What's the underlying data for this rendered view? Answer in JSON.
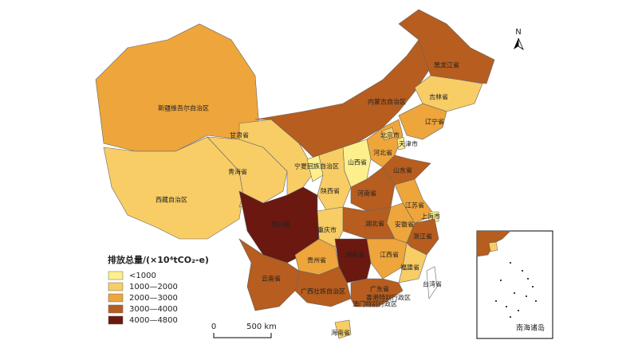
{
  "map": {
    "legend": {
      "title": "排放总量/(×10⁴tCO₂-e)",
      "classes": [
        "<1000",
        "1000—2000",
        "2000—3000",
        "3000—4000",
        "4000—4800"
      ],
      "colors": [
        "#fdf08c",
        "#f8cd66",
        "#eea53b",
        "#b65d1f",
        "#6a1810"
      ]
    },
    "provinces": [
      {
        "name": "新疆维吾尔自治区",
        "class": 2
      },
      {
        "name": "西藏自治区",
        "class": 1
      },
      {
        "name": "青海省",
        "class": 1
      },
      {
        "name": "甘肃省",
        "class": 1
      },
      {
        "name": "内蒙古自治区",
        "class": 3
      },
      {
        "name": "黑龙江省",
        "class": 3
      },
      {
        "name": "吉林省",
        "class": 1
      },
      {
        "name": "辽宁省",
        "class": 2
      },
      {
        "name": "河北省",
        "class": 2
      },
      {
        "name": "北京市",
        "class": 1
      },
      {
        "name": "天津市",
        "class": 0
      },
      {
        "name": "山西省",
        "class": 0
      },
      {
        "name": "宁夏回族自治区",
        "class": 0
      },
      {
        "name": "陕西省",
        "class": 1
      },
      {
        "name": "山东省",
        "class": 3
      },
      {
        "name": "河南省",
        "class": 3
      },
      {
        "name": "江苏省",
        "class": 2
      },
      {
        "name": "安徽省",
        "class": 2
      },
      {
        "name": "上海市",
        "class": 0
      },
      {
        "name": "浙江省",
        "class": 3
      },
      {
        "name": "湖北省",
        "class": 3
      },
      {
        "name": "重庆市",
        "class": 1
      },
      {
        "name": "四川省",
        "class": 4
      },
      {
        "name": "贵州省",
        "class": 2
      },
      {
        "name": "湖南省",
        "class": 4
      },
      {
        "name": "江西省",
        "class": 2
      },
      {
        "name": "福建省",
        "class": 1
      },
      {
        "name": "云南省",
        "class": 3
      },
      {
        "name": "广西壮族自治区",
        "class": 3
      },
      {
        "name": "广东省",
        "class": 3
      },
      {
        "name": "海南省",
        "class": 1
      },
      {
        "name": "台湾省",
        "class": null
      }
    ],
    "other_labels": [
      "香港特别行政区",
      "澳门特别行政区"
    ],
    "inset_label": "南海诸岛",
    "north": "N",
    "scale": [
      "0",
      "500 km"
    ]
  }
}
